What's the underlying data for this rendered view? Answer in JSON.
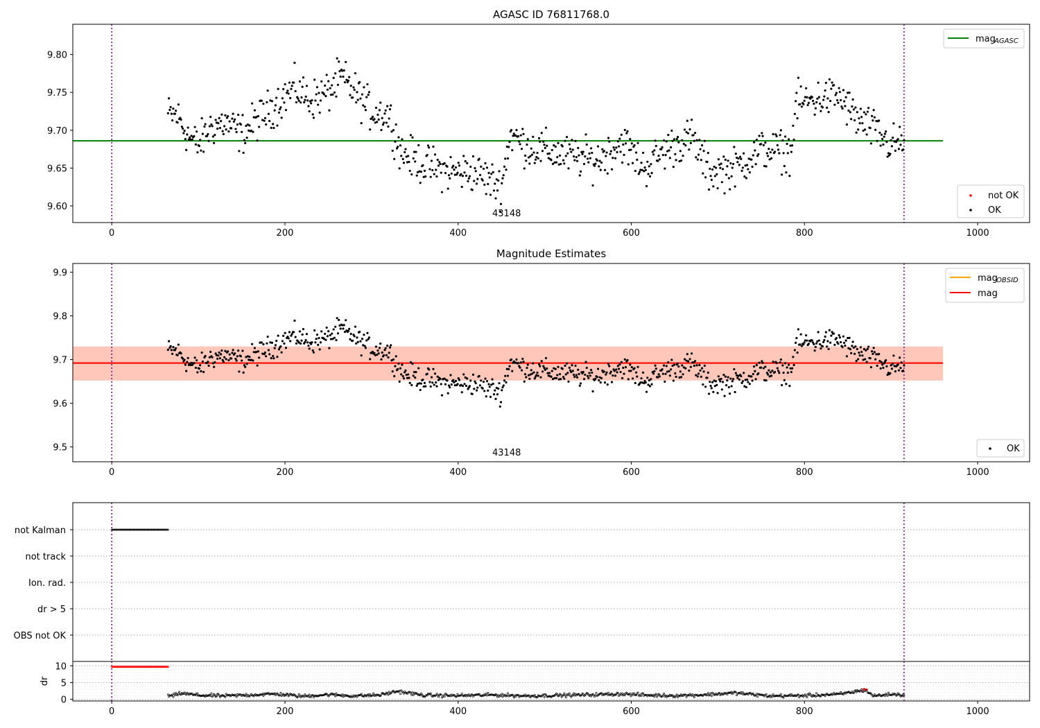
{
  "figure": {
    "panel1": {
      "title": "AGASC ID 76811768.0",
      "obsid_label": "43148",
      "xlim": [
        -45,
        1060
      ],
      "ylim": [
        9.578,
        9.84
      ],
      "xticks": [
        0,
        200,
        400,
        600,
        800,
        1000
      ],
      "yticks": [
        9.6,
        9.65,
        9.7,
        9.75,
        9.8
      ],
      "ytick_labels": [
        "9.60",
        "9.65",
        "9.70",
        "9.75",
        "9.80"
      ],
      "legend_line": {
        "base": "mag",
        "sub": "AGASC"
      },
      "legend_points": [
        {
          "label": "not OK",
          "color": "#ff0000"
        },
        {
          "label": "OK",
          "color": "#000000"
        }
      ]
    },
    "panel2": {
      "title": "Magnitude Estimates",
      "obsid_label": "43148",
      "xlim": [
        -45,
        1060
      ],
      "ylim": [
        9.466,
        9.92
      ],
      "xticks": [
        0,
        200,
        400,
        600,
        800,
        1000
      ],
      "yticks": [
        9.5,
        9.6,
        9.7,
        9.8,
        9.9
      ],
      "ytick_labels": [
        "9.5",
        "9.6",
        "9.7",
        "9.8",
        "9.9"
      ],
      "legend_lines": [
        {
          "base": "mag",
          "sub": "OBSID",
          "color": "#ffa500"
        },
        {
          "base": "mag",
          "sub": "",
          "color": "#ff0000"
        }
      ],
      "legend_points": [
        {
          "label": "OK",
          "color": "#000000"
        }
      ]
    },
    "panel3": {
      "flag_labels": [
        "not Kalman",
        "not track",
        "Ion. rad.",
        "dr > 5",
        "OBS not OK"
      ],
      "xticks": [
        0,
        200,
        400,
        600,
        800,
        1000
      ]
    },
    "panel4": {
      "ylabel": "dr",
      "yticks": [
        0,
        5,
        10
      ],
      "ylim": [
        -0.5,
        11.3
      ],
      "xticks": [
        0,
        200,
        400,
        600,
        800,
        1000
      ]
    },
    "colors": {
      "agasc_line": "#008000",
      "obsid_line": "#ffa500",
      "mag_line": "#ff0000",
      "obs_band": "#ffa07a",
      "mag_band": "#ffc0cb",
      "vline": "#800080"
    }
  },
  "chart_data": [
    {
      "type": "scatter",
      "title": "AGASC ID 76811768.0",
      "xlabel": "",
      "ylabel": "",
      "xlim": [
        -45,
        1060
      ],
      "ylim": [
        9.578,
        9.84
      ],
      "mag_agasc": 9.686,
      "obs_start": 0,
      "obs_end": 915,
      "series": [
        {
          "name": "OK",
          "x_range": [
            65,
            915
          ],
          "n_points": 850
        },
        {
          "name": "not OK",
          "x_range": [],
          "n_points": 0
        }
      ],
      "trend_x": [
        65,
        75,
        90,
        100,
        115,
        130,
        150,
        170,
        190,
        210,
        230,
        250,
        265,
        285,
        300,
        320,
        335,
        360,
        390,
        420,
        450,
        460,
        480,
        520,
        560,
        590,
        615,
        640,
        670,
        690,
        720,
        750,
        785,
        790,
        820,
        840,
        860,
        880,
        900,
        915
      ],
      "trend_y": [
        9.72,
        9.72,
        9.69,
        9.68,
        9.705,
        9.71,
        9.695,
        9.715,
        9.735,
        9.755,
        9.74,
        9.75,
        9.77,
        9.745,
        9.725,
        9.72,
        9.67,
        9.655,
        9.645,
        9.645,
        9.625,
        9.695,
        9.678,
        9.668,
        9.66,
        9.685,
        9.65,
        9.675,
        9.69,
        9.645,
        9.65,
        9.675,
        9.672,
        9.735,
        9.742,
        9.745,
        9.715,
        9.7,
        9.68,
        9.685
      ],
      "noise": 0.013
    },
    {
      "type": "scatter",
      "title": "Magnitude Estimates",
      "xlim": [
        -45,
        1060
      ],
      "ylim": [
        9.466,
        9.92
      ],
      "mag": 9.692,
      "mag_obsid": 9.692,
      "band_obsid": [
        9.652,
        9.73
      ],
      "band_mag": [
        9.652,
        9.73
      ],
      "band_x": [
        -45,
        960
      ],
      "series": [
        {
          "name": "OK",
          "x_range": [
            65,
            915
          ],
          "n_points": 850
        }
      ]
    },
    {
      "type": "scatter",
      "flags": {
        "not Kalman": [
          0,
          65
        ],
        "not track": [],
        "Ion. rad.": [],
        "dr > 5": [],
        "OBS not OK": []
      }
    },
    {
      "type": "scatter",
      "ylabel": "dr",
      "ylim": [
        -0.5,
        11.3
      ],
      "high_dr": {
        "x_range": [
          0,
          65
        ],
        "value": 9.7
      },
      "dr_trend_x": [
        70,
        80,
        100,
        130,
        160,
        190,
        220,
        250,
        280,
        310,
        330,
        360,
        400,
        440,
        480,
        520,
        560,
        590,
        620,
        650,
        680,
        720,
        760,
        800,
        840,
        870,
        880,
        900,
        915
      ],
      "dr_trend_y": [
        1.0,
        1.8,
        1.2,
        1.0,
        1.3,
        1.6,
        0.9,
        1.4,
        1.0,
        1.3,
        2.4,
        1.2,
        1.1,
        1.3,
        1.0,
        1.2,
        1.4,
        1.6,
        1.2,
        1.1,
        1.3,
        1.9,
        1.0,
        1.1,
        1.5,
        2.8,
        1.0,
        1.5,
        1.3
      ]
    }
  ]
}
